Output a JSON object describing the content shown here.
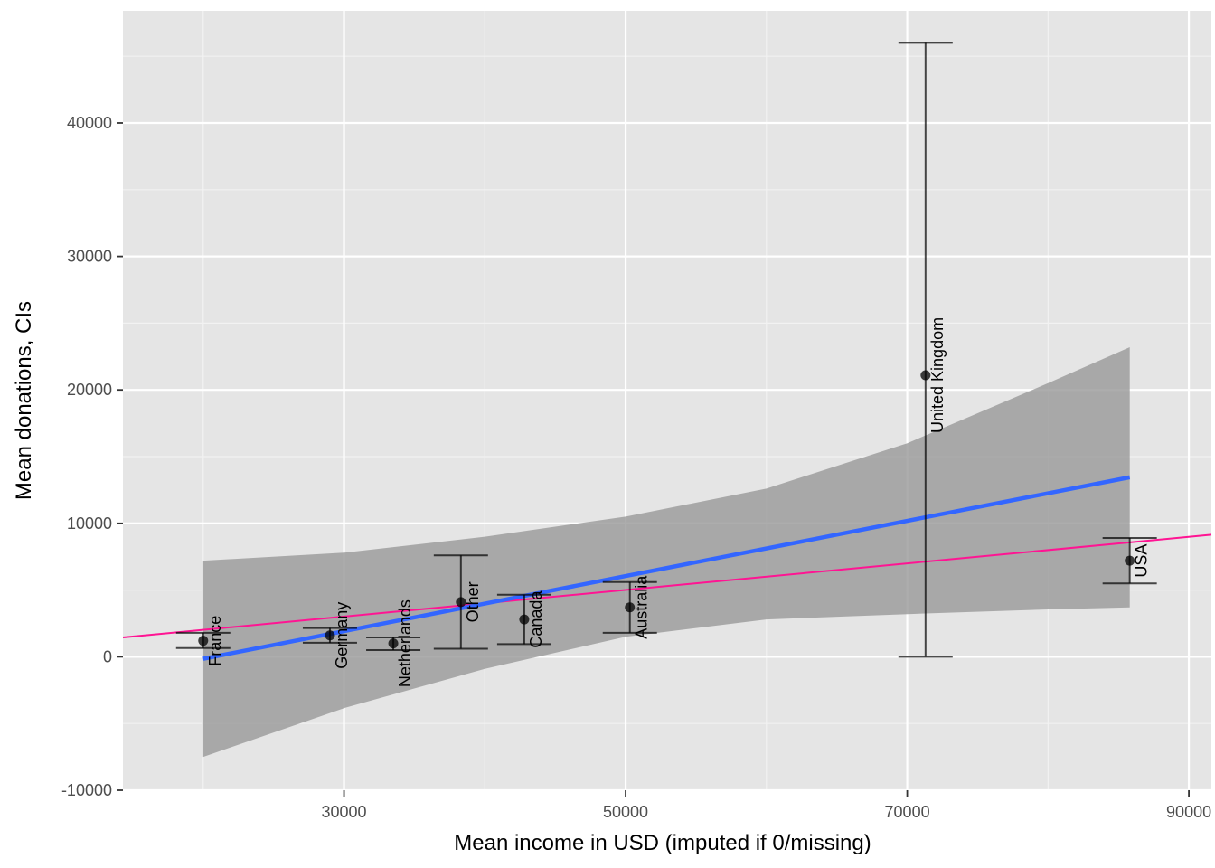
{
  "chart_data": {
    "type": "scatter",
    "title": "",
    "xlabel": "Mean income in USD (imputed if 0/missing)",
    "ylabel": "Mean donations, CIs",
    "xlim": [
      14300,
      91600
    ],
    "ylim": [
      -10000,
      48400
    ],
    "x_ticks": [
      30000,
      50000,
      70000,
      90000
    ],
    "x_minor_ticks": [
      20000,
      40000,
      60000,
      80000
    ],
    "y_ticks": [
      -10000,
      0,
      10000,
      20000,
      30000,
      40000
    ],
    "y_minor_ticks": [
      -5000,
      5000,
      15000,
      25000,
      35000,
      45000
    ],
    "grid": true,
    "legend": "none",
    "points": [
      {
        "label": "France",
        "x": 20000,
        "y": 1200,
        "ci_low": 650,
        "ci_high": 1800
      },
      {
        "label": "Germany",
        "x": 29000,
        "y": 1600,
        "ci_low": 1050,
        "ci_high": 2150
      },
      {
        "label": "Netherlands",
        "x": 33500,
        "y": 1000,
        "ci_low": 500,
        "ci_high": 1450
      },
      {
        "label": "Other",
        "x": 38300,
        "y": 4100,
        "ci_low": 600,
        "ci_high": 7600
      },
      {
        "label": "Canada",
        "x": 42800,
        "y": 2800,
        "ci_low": 950,
        "ci_high": 4650
      },
      {
        "label": "Australia",
        "x": 50300,
        "y": 3700,
        "ci_low": 1800,
        "ci_high": 5600
      },
      {
        "label": "United Kingdom",
        "x": 71300,
        "y": 21100,
        "ci_low": 0,
        "ci_high": 46000
      },
      {
        "label": "USA",
        "x": 85800,
        "y": 7200,
        "ci_low": 5500,
        "ci_high": 8900
      }
    ],
    "weighted_fit": {
      "x": [
        20000,
        85800
      ],
      "y": [
        -150,
        13450
      ],
      "color": "#3366ff"
    },
    "confidence_band": {
      "x": [
        20000,
        30000,
        40000,
        50000,
        60000,
        70000,
        80000,
        85800
      ],
      "lower": [
        -7500,
        -3850,
        -900,
        1500,
        2800,
        3200,
        3550,
        3700
      ],
      "upper": [
        7200,
        7800,
        9000,
        10500,
        12600,
        16000,
        20500,
        23200
      ],
      "color": "#999999"
    },
    "unweighted_fit": {
      "x": [
        14300,
        91600
      ],
      "y": [
        1450,
        9150
      ],
      "color": "#ff1493"
    }
  }
}
